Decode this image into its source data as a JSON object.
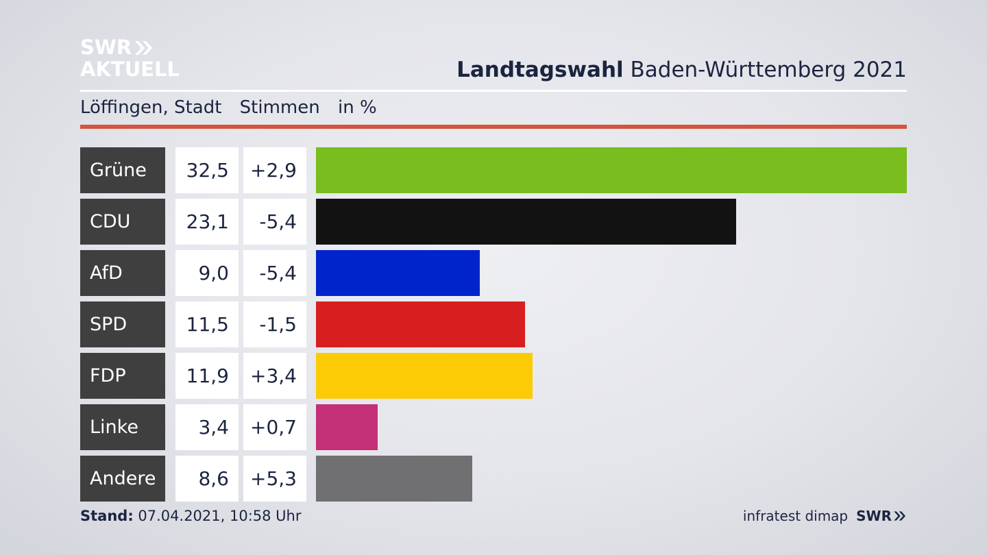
{
  "logo": {
    "line1": "SWR",
    "line2": "AKTUELL"
  },
  "header": {
    "title_bold": "Landtagswahl",
    "title_rest": " Baden-Württemberg 2021"
  },
  "subheader": {
    "place": "Löffingen, Stadt",
    "measure": "Stimmen",
    "unit": "in %"
  },
  "colors": {
    "accent_rule": "#d3553f",
    "label_bg": "#3f3f3f"
  },
  "chart_data": {
    "type": "bar",
    "orientation": "horizontal",
    "categories": [
      "Grüne",
      "CDU",
      "AfD",
      "SPD",
      "FDP",
      "Linke",
      "Andere"
    ],
    "values": [
      32.5,
      23.1,
      9.0,
      11.5,
      11.9,
      3.4,
      8.6
    ],
    "value_labels": [
      "32,5",
      "23,1",
      "9,0",
      "11,5",
      "11,9",
      "3,4",
      "8,6"
    ],
    "change_labels": [
      "+2,9",
      "-5,4",
      "-5,4",
      "-1,5",
      "+3,4",
      "+0,7",
      "+5,3"
    ],
    "changes": [
      2.9,
      -5.4,
      -5.4,
      -1.5,
      3.4,
      0.7,
      5.3
    ],
    "colors": [
      "#79bd1e",
      "#121212",
      "#0024cc",
      "#d71f1f",
      "#fccb05",
      "#c33078",
      "#707072"
    ],
    "xlim": [
      0,
      32.5
    ],
    "grid": false
  },
  "footer": {
    "stand_label": "Stand:",
    "stand_value": " 07.04.2021, 10:58 Uhr",
    "source": "infratest dimap",
    "brand": "SWR"
  }
}
